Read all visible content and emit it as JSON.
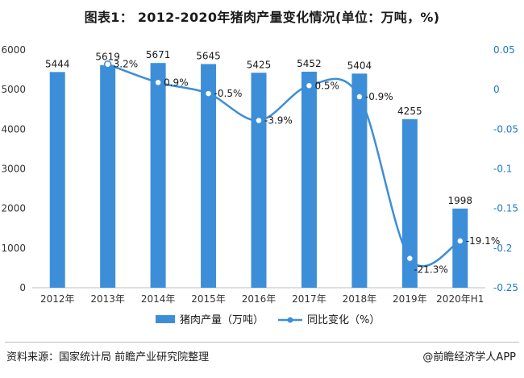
{
  "header": {
    "title": "图表1：  2012-2020年猪肉产量变化情况(单位：万吨，%)"
  },
  "footer": {
    "source": "资料来源：国家统计局 前瞻产业研究院整理",
    "brand": "@前瞻经济学人APP"
  },
  "colors": {
    "bar": "#3d8ed8",
    "line": "#3d8ed8",
    "right_axis_text": "#1f78c8"
  },
  "chart_data": {
    "type": "bar",
    "title": "2012-2020年猪肉产量变化情况(单位：万吨，%)",
    "categories": [
      "2012年",
      "2013年",
      "2014年",
      "2015年",
      "2016年",
      "2017年",
      "2018年",
      "2019年",
      "2020年H1"
    ],
    "series": [
      {
        "name": "猪肉产量（万吨）",
        "type": "bar",
        "axis": "left",
        "values": [
          5444,
          5619,
          5671,
          5645,
          5425,
          5452,
          5404,
          4255,
          1998
        ],
        "labels": [
          "5444",
          "5619",
          "5671",
          "5645",
          "5425",
          "5452",
          "5404",
          "4255",
          "1998"
        ]
      },
      {
        "name": "同比变化（%）",
        "type": "line",
        "axis": "right",
        "smooth": true,
        "values": [
          null,
          0.032,
          0.009,
          -0.005,
          -0.039,
          0.005,
          -0.009,
          -0.213,
          -0.191
        ],
        "labels": [
          "",
          "3.2%",
          "0.9%",
          "-0.5%",
          "-3.9%",
          "0.5%",
          "-0.9%",
          "-21.3%",
          "-19.1%"
        ]
      }
    ],
    "y_left": {
      "min": 0,
      "max": 6000,
      "ticks": [
        0,
        1000,
        2000,
        3000,
        4000,
        5000,
        6000
      ],
      "tick_labels": [
        "0",
        "1000",
        "2000",
        "3000",
        "4000",
        "5000",
        "6000"
      ]
    },
    "y_right": {
      "min": -0.25,
      "max": 0.05,
      "ticks": [
        -0.25,
        -0.2,
        -0.15,
        -0.1,
        -0.05,
        0,
        0.05
      ],
      "tick_labels": [
        "-0.25",
        "-0.2",
        "-0.15",
        "-0.1",
        "-0.05",
        "0",
        "0.05"
      ]
    },
    "grid": false,
    "legend_position": "bottom"
  }
}
